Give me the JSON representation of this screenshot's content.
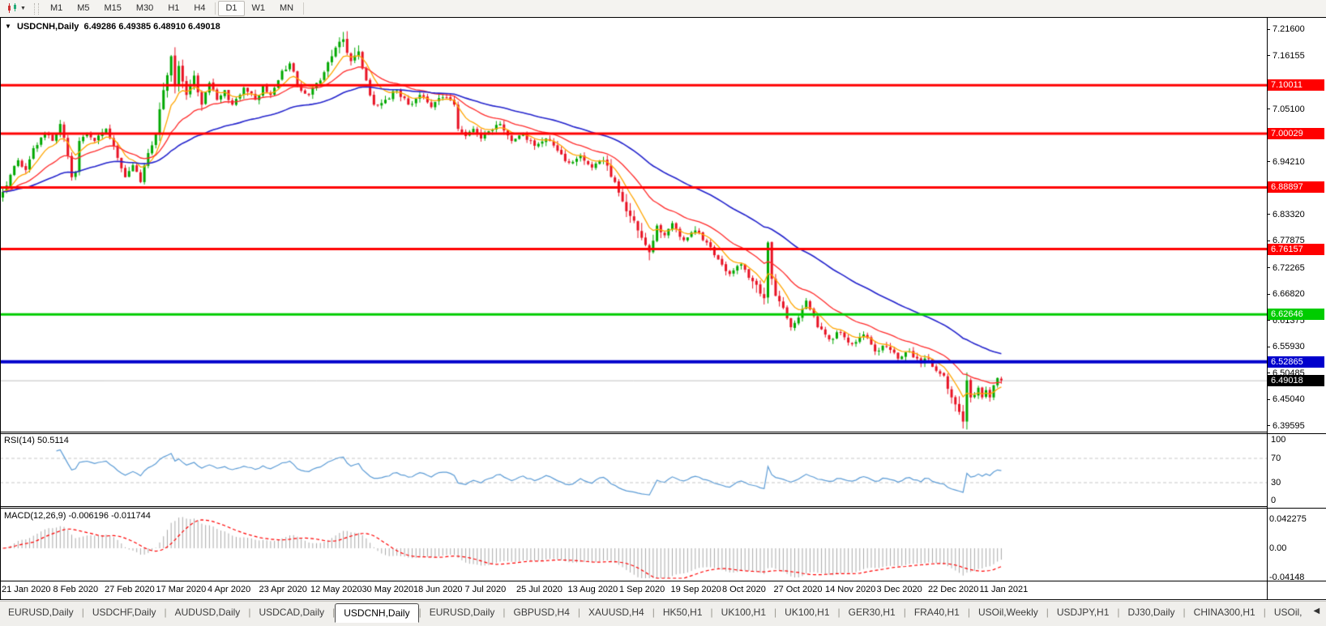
{
  "toolbar": {
    "timeframes": [
      "M1",
      "M5",
      "M15",
      "M30",
      "H1",
      "H4",
      "D1",
      "W1",
      "MN"
    ],
    "active_timeframe": "D1"
  },
  "icons": {
    "chart_type_dropdown": "▼",
    "title_collapse": "▼",
    "tab_scroll_left": "◀",
    "tab_scroll_right": "▶"
  },
  "chart_header": {
    "symbol": "USDCNH,Daily",
    "open": "6.49286",
    "high": "6.49385",
    "low": "6.48910",
    "close": "6.49018"
  },
  "price_axis": {
    "ticks": [
      "7.21600",
      "7.16155",
      "7.05100",
      "6.94210",
      "6.83320",
      "6.77875",
      "6.72265",
      "6.66820",
      "6.61375",
      "6.55930",
      "6.50485",
      "6.45040",
      "6.39595"
    ]
  },
  "hlines": [
    {
      "label": "7.10011",
      "value": 7.10011,
      "color": "#FF0000",
      "thickness": 3
    },
    {
      "label": "7.00029",
      "value": 7.00029,
      "color": "#FF0000",
      "thickness": 3
    },
    {
      "label": "6.88897",
      "value": 6.88897,
      "color": "#FF0000",
      "thickness": 3
    },
    {
      "label": "6.76157",
      "value": 6.76157,
      "color": "#FF0000",
      "thickness": 3
    },
    {
      "label": "6.62646",
      "value": 6.62646,
      "color": "#00CC00",
      "thickness": 3
    },
    {
      "label": "6.52865",
      "value": 6.52865,
      "color": "#0000CC",
      "thickness": 4
    }
  ],
  "current_price": {
    "label": "6.49018",
    "value": 6.49018,
    "line_color": "#C0C0C0",
    "label_bg": "#000000"
  },
  "rsi": {
    "name": "RSI(14)",
    "value": "50.5114",
    "levels": [
      "100",
      "70",
      "30",
      "0"
    ],
    "level_values": [
      100,
      70,
      30,
      0
    ],
    "dashed_levels": [
      70,
      30
    ],
    "line_color": "#5B9BD5"
  },
  "macd": {
    "name": "MACD(12,26,9)",
    "values": "-0.006196 -0.011744",
    "axis_labels": [
      "0.042275",
      "0.00",
      "-0.04148"
    ],
    "axis_values": [
      0.042275,
      0,
      -0.04148
    ],
    "histogram_color": "#A9A9A9",
    "signal_color": "#FF0000"
  },
  "date_axis": [
    "21 Jan 2020",
    "8 Feb 2020",
    "27 Feb 2020",
    "17 Mar 2020",
    "4 Apr 2020",
    "23 Apr 2020",
    "12 May 2020",
    "30 May 2020",
    "18 Jun 2020",
    "7 Jul 2020",
    "25 Jul 2020",
    "13 Aug 2020",
    "1 Sep 2020",
    "19 Sep 2020",
    "8 Oct 2020",
    "27 Oct 2020",
    "14 Nov 2020",
    "3 Dec 2020",
    "22 Dec 2020",
    "11 Jan 2021"
  ],
  "tabs": {
    "active_index": 4,
    "items": [
      "EURUSD,Daily",
      "USDCHF,Daily",
      "AUDUSD,Daily",
      "USDCAD,Daily",
      "USDCNH,Daily",
      "EURUSD,Daily",
      "GBPUSD,H4",
      "XAUUSD,H4",
      "HK50,H1",
      "UK100,H1",
      "UK100,H1",
      "GER30,H1",
      "FRA40,H1",
      "USOil,Weekly",
      "USDJPY,H1",
      "DJ30,Daily",
      "CHINA300,H1",
      "USOil,"
    ]
  },
  "chart_data": {
    "type": "candlestick",
    "symbol": "USDCNH",
    "period": "Daily",
    "title": "USDCNH,Daily",
    "x_range_dates": [
      "21 Jan 2020",
      "19 Jan 2021"
    ],
    "ylim": [
      6.384,
      7.239
    ],
    "num_candles": 262,
    "up_color": "#00A800",
    "down_color": "#E81123",
    "close_anchors": [
      [
        0,
        6.88
      ],
      [
        2,
        6.915
      ],
      [
        4,
        6.945
      ],
      [
        6,
        6.925
      ],
      [
        8,
        6.97
      ],
      [
        11,
        7.0
      ],
      [
        13,
        6.985
      ],
      [
        15,
        7.02
      ],
      [
        17,
        6.955
      ],
      [
        18,
        6.91
      ],
      [
        19,
        6.92
      ],
      [
        20,
        6.985
      ],
      [
        22,
        7.0
      ],
      [
        24,
        6.985
      ],
      [
        27,
        7.01
      ],
      [
        30,
        6.95
      ],
      [
        32,
        6.91
      ],
      [
        34,
        6.935
      ],
      [
        36,
        6.9
      ],
      [
        38,
        6.96
      ],
      [
        40,
        7.0
      ],
      [
        42,
        7.09
      ],
      [
        44,
        7.16
      ],
      [
        45,
        7.1
      ],
      [
        46,
        7.14
      ],
      [
        48,
        7.08
      ],
      [
        50,
        7.12
      ],
      [
        52,
        7.06
      ],
      [
        54,
        7.105
      ],
      [
        56,
        7.07
      ],
      [
        58,
        7.09
      ],
      [
        60,
        7.06
      ],
      [
        63,
        7.095
      ],
      [
        66,
        7.07
      ],
      [
        68,
        7.1
      ],
      [
        70,
        7.08
      ],
      [
        73,
        7.13
      ],
      [
        75,
        7.145
      ],
      [
        77,
        7.1
      ],
      [
        80,
        7.08
      ],
      [
        83,
        7.11
      ],
      [
        86,
        7.16
      ],
      [
        88,
        7.19
      ],
      [
        89,
        7.195
      ],
      [
        91,
        7.15
      ],
      [
        93,
        7.17
      ],
      [
        95,
        7.11
      ],
      [
        97,
        7.06
      ],
      [
        100,
        7.07
      ],
      [
        103,
        7.09
      ],
      [
        106,
        7.06
      ],
      [
        109,
        7.08
      ],
      [
        112,
        7.055
      ],
      [
        115,
        7.075
      ],
      [
        118,
        7.06
      ],
      [
        119,
        7.01
      ],
      [
        121,
        6.995
      ],
      [
        123,
        7.01
      ],
      [
        125,
        6.99
      ],
      [
        127,
        7.005
      ],
      [
        130,
        7.02
      ],
      [
        133,
        6.985
      ],
      [
        136,
        7.0
      ],
      [
        139,
        6.975
      ],
      [
        142,
        6.99
      ],
      [
        145,
        6.965
      ],
      [
        148,
        6.94
      ],
      [
        151,
        6.955
      ],
      [
        154,
        6.93
      ],
      [
        157,
        6.945
      ],
      [
        160,
        6.9
      ],
      [
        162,
        6.86
      ],
      [
        164,
        6.83
      ],
      [
        166,
        6.8
      ],
      [
        168,
        6.77
      ],
      [
        169,
        6.755
      ],
      [
        171,
        6.81
      ],
      [
        173,
        6.79
      ],
      [
        175,
        6.815
      ],
      [
        178,
        6.78
      ],
      [
        181,
        6.8
      ],
      [
        184,
        6.775
      ],
      [
        187,
        6.74
      ],
      [
        190,
        6.71
      ],
      [
        193,
        6.73
      ],
      [
        196,
        6.695
      ],
      [
        199,
        6.66
      ],
      [
        200,
        6.775
      ],
      [
        201,
        6.7
      ],
      [
        202,
        6.665
      ],
      [
        204,
        6.64
      ],
      [
        206,
        6.6
      ],
      [
        208,
        6.62
      ],
      [
        210,
        6.655
      ],
      [
        213,
        6.6
      ],
      [
        216,
        6.575
      ],
      [
        219,
        6.59
      ],
      [
        222,
        6.565
      ],
      [
        225,
        6.585
      ],
      [
        228,
        6.55
      ],
      [
        231,
        6.56
      ],
      [
        234,
        6.535
      ],
      [
        237,
        6.55
      ],
      [
        240,
        6.525
      ],
      [
        242,
        6.535
      ],
      [
        244,
        6.51
      ],
      [
        246,
        6.5
      ],
      [
        248,
        6.455
      ],
      [
        250,
        6.425
      ],
      [
        251,
        6.405
      ],
      [
        252,
        6.49
      ],
      [
        253,
        6.455
      ],
      [
        254,
        6.46
      ],
      [
        255,
        6.475
      ],
      [
        256,
        6.455
      ],
      [
        257,
        6.47
      ],
      [
        258,
        6.455
      ],
      [
        259,
        6.48
      ],
      [
        260,
        6.495
      ],
      [
        261,
        6.49018
      ]
    ],
    "moving_averages": [
      {
        "name": "fast-ma",
        "period": 8,
        "color": "#FFA500"
      },
      {
        "name": "medium-ma",
        "period": 22,
        "color": "#FF2A2A"
      },
      {
        "name": "slow-ma",
        "period": 55,
        "color": "#2323CC"
      }
    ],
    "indicators": [
      {
        "name": "RSI",
        "params": [
          14
        ],
        "last_value": 50.5114
      },
      {
        "name": "MACD",
        "params": [
          12,
          26,
          9
        ],
        "last_values": [
          -0.006196,
          -0.011744
        ]
      }
    ]
  }
}
